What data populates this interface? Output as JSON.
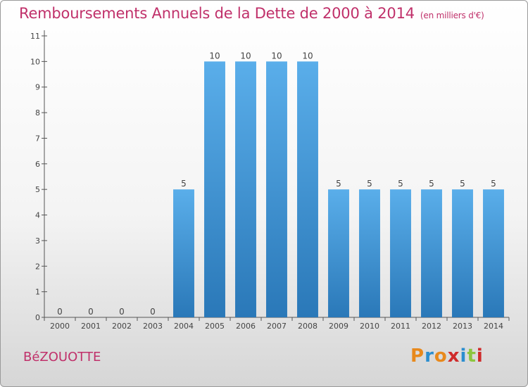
{
  "title": "Remboursements Annuels de la Dette de 2000 à 2014",
  "subtitle": "(en milliers d'€)",
  "commune": "BéZOUOTTE",
  "logo": {
    "text": "Proxiti",
    "colors": [
      "#e8891c",
      "#2b8ecf",
      "#e8891c",
      "#cf2b2b",
      "#2b8ecf",
      "#8cc63f",
      "#cf2b2b"
    ]
  },
  "colors": {
    "bar_top": "#5aaeea",
    "bar_bottom": "#2a78b8",
    "title": "#c0306a",
    "axis": "#555555"
  },
  "chart_data": {
    "type": "bar",
    "categories": [
      "2000",
      "2001",
      "2002",
      "2003",
      "2004",
      "2005",
      "2006",
      "2007",
      "2008",
      "2009",
      "2010",
      "2011",
      "2012",
      "2013",
      "2014"
    ],
    "values": [
      0,
      0,
      0,
      0,
      5,
      10,
      10,
      10,
      10,
      5,
      5,
      5,
      5,
      5,
      5
    ],
    "yticks": [
      0,
      1,
      2,
      3,
      4,
      5,
      6,
      7,
      8,
      9,
      10,
      11
    ],
    "ylim": [
      0,
      11
    ],
    "grid": false,
    "data_labels": true
  }
}
